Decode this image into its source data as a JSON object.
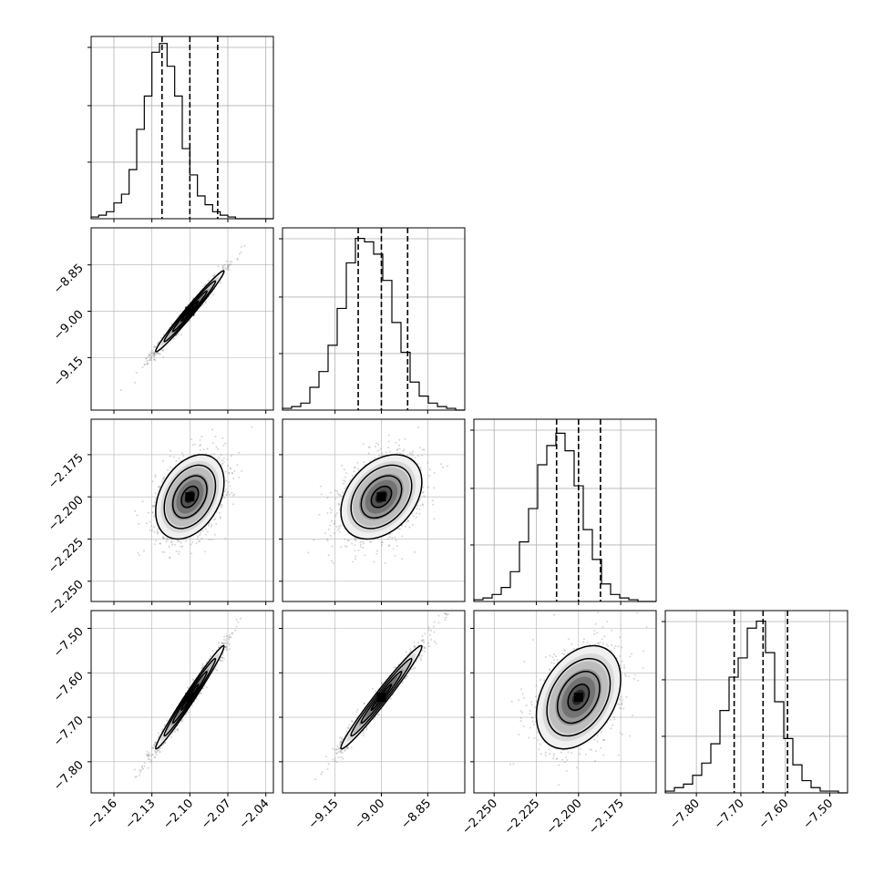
{
  "chart_data": [
    {
      "type": "histogram",
      "variable": 0,
      "xlim": [
        -2.178,
        -2.034
      ],
      "xticks": [
        -2.16,
        -2.13,
        -2.1,
        -2.07,
        -2.04
      ],
      "bin_edges_start": -2.178,
      "bin_width": 0.006,
      "counts": [
        0.01,
        0.02,
        0.04,
        0.09,
        0.14,
        0.28,
        0.51,
        0.7,
        0.95,
        1.0,
        0.87,
        0.7,
        0.4,
        0.25,
        0.13,
        0.08,
        0.04,
        0.02,
        0.01,
        0.0,
        0.0,
        0.0,
        0.0,
        0.0
      ],
      "quantiles": [
        -2.122,
        -2.1,
        -2.078
      ]
    },
    {
      "type": "histogram",
      "variable": 1,
      "xlim": [
        -9.32,
        -8.73
      ],
      "xticks": [
        -9.15,
        -9.0,
        -8.85
      ],
      "bin_edges_start": -9.32,
      "bin_width": 0.0295,
      "counts": [
        0.01,
        0.02,
        0.04,
        0.13,
        0.22,
        0.37,
        0.58,
        0.84,
        0.98,
        0.96,
        0.89,
        0.74,
        0.5,
        0.33,
        0.16,
        0.08,
        0.04,
        0.02,
        0.01,
        0.0
      ],
      "quantiles": [
        -9.075,
        -9.0,
        -8.915
      ]
    },
    {
      "type": "histogram",
      "variable": 2,
      "xlim": [
        -2.262,
        -2.154
      ],
      "xticks": [
        -2.25,
        -2.225,
        -2.2,
        -2.175
      ],
      "bin_edges_start": -2.262,
      "bin_width": 0.0054,
      "counts": [
        0.01,
        0.02,
        0.04,
        0.08,
        0.17,
        0.34,
        0.53,
        0.78,
        0.89,
        0.96,
        0.86,
        0.66,
        0.41,
        0.24,
        0.1,
        0.04,
        0.02,
        0.01,
        0.0,
        0.0
      ],
      "quantiles": [
        -2.213,
        -2.2,
        -2.187
      ]
    },
    {
      "type": "histogram",
      "variable": 3,
      "xlim": [
        -7.87,
        -7.46
      ],
      "xticks": [
        -7.8,
        -7.7,
        -7.6,
        -7.5
      ],
      "bin_edges_start": -7.87,
      "bin_width": 0.0205,
      "counts": [
        0.01,
        0.03,
        0.05,
        0.1,
        0.17,
        0.28,
        0.47,
        0.66,
        0.77,
        0.94,
        0.98,
        0.8,
        0.52,
        0.31,
        0.16,
        0.07,
        0.03,
        0.01,
        0.01,
        0.0
      ],
      "quantiles": [
        -7.715,
        -7.65,
        -7.595
      ]
    },
    {
      "type": "scatter_density",
      "x_variable": 0,
      "y_variable": 1,
      "xlim": [
        -2.178,
        -2.034
      ],
      "ylim": [
        -9.32,
        -8.73
      ],
      "yticks": [
        -9.15,
        -9.0,
        -8.85
      ],
      "mean": [
        -2.1,
        -9.0
      ],
      "sigma": [
        0.0135,
        0.0655
      ],
      "rho": 0.985,
      "contour_levels_sigma": [
        0.5,
        1.0,
        1.5,
        2.0
      ]
    },
    {
      "type": "scatter_density",
      "x_variable": 0,
      "y_variable": 2,
      "xlim": [
        -2.178,
        -2.034
      ],
      "ylim": [
        -2.262,
        -2.154
      ],
      "yticks": [
        -2.25,
        -2.225,
        -2.2,
        -2.175
      ],
      "mean": [
        -2.1,
        -2.2
      ],
      "sigma": [
        0.0135,
        0.0125
      ],
      "rho": 0.35,
      "contour_levels_sigma": [
        0.5,
        1.0,
        1.5,
        2.0
      ]
    },
    {
      "type": "scatter_density",
      "x_variable": 1,
      "y_variable": 2,
      "xlim": [
        -9.32,
        -8.73
      ],
      "ylim": [
        -2.262,
        -2.154
      ],
      "mean": [
        -9.0,
        -2.2
      ],
      "sigma": [
        0.0655,
        0.0125
      ],
      "rho": 0.35,
      "contour_levels_sigma": [
        0.5,
        1.0,
        1.5,
        2.0
      ]
    },
    {
      "type": "scatter_density",
      "x_variable": 0,
      "y_variable": 3,
      "xlim": [
        -2.178,
        -2.034
      ],
      "ylim": [
        -7.87,
        -7.46
      ],
      "yticks": [
        -7.8,
        -7.7,
        -7.6,
        -7.5
      ],
      "mean": [
        -2.1,
        -7.655
      ],
      "sigma": [
        0.0135,
        0.058
      ],
      "rho": 0.985,
      "contour_levels_sigma": [
        0.5,
        1.0,
        1.5,
        2.0
      ]
    },
    {
      "type": "scatter_density",
      "x_variable": 1,
      "y_variable": 3,
      "xlim": [
        -9.32,
        -8.73
      ],
      "ylim": [
        -7.87,
        -7.46
      ],
      "mean": [
        -9.0,
        -7.655
      ],
      "sigma": [
        0.0655,
        0.058
      ],
      "rho": 0.98,
      "contour_levels_sigma": [
        0.5,
        1.0,
        1.5,
        2.0
      ]
    },
    {
      "type": "scatter_density",
      "x_variable": 2,
      "y_variable": 3,
      "xlim": [
        -2.262,
        -2.154
      ],
      "ylim": [
        -7.87,
        -7.46
      ],
      "mean": [
        -2.2,
        -7.655
      ],
      "sigma": [
        0.0125,
        0.058
      ],
      "rho": 0.35,
      "contour_levels_sigma": [
        0.5,
        1.0,
        1.5,
        2.0
      ]
    }
  ],
  "grid": true,
  "colors": {
    "line": "#000000",
    "grid": "#b0b0b0",
    "points": "#888888"
  }
}
